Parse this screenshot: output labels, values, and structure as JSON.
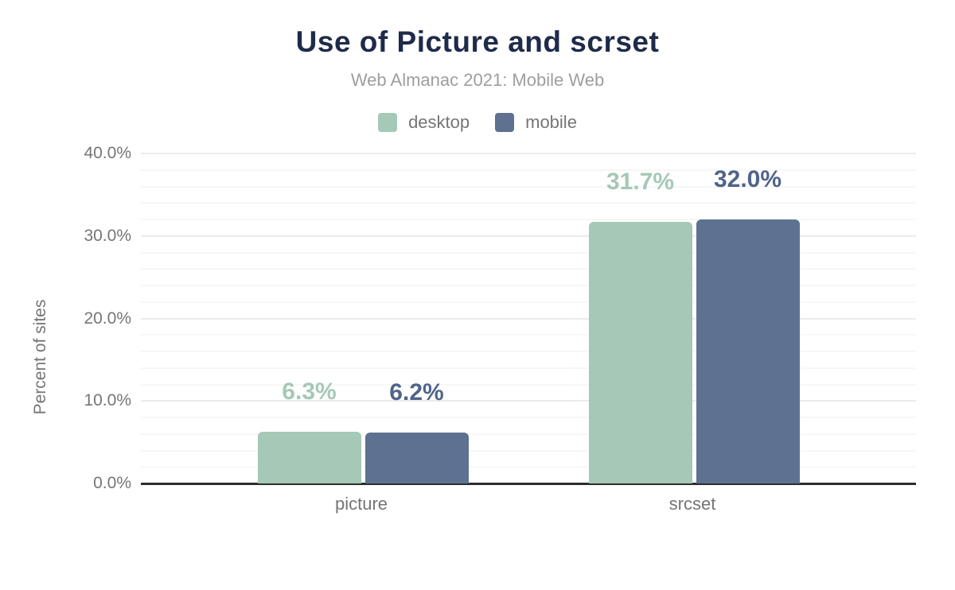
{
  "chart_data": {
    "type": "bar",
    "title": "Use of Picture and scrset",
    "subtitle": "Web Almanac 2021: Mobile Web",
    "ylabel": "Percent of sites",
    "categories": [
      "picture",
      "srcset"
    ],
    "series": [
      {
        "name": "desktop",
        "color": "#a5c8b7",
        "label_color": "#a5c8b7",
        "values": [
          6.3,
          31.7
        ],
        "data_labels": [
          "6.3%",
          "31.7%"
        ]
      },
      {
        "name": "mobile",
        "color": "#5e7190",
        "label_color": "#50648a",
        "values": [
          6.2,
          32.0
        ],
        "data_labels": [
          "6.2%",
          "32.0%"
        ]
      }
    ],
    "y_axis": {
      "min": 0,
      "max": 40,
      "major_step": 10,
      "minor_step": 2,
      "ticks": [
        {
          "value": 0,
          "label": "0.0%"
        },
        {
          "value": 10,
          "label": "10.0%"
        },
        {
          "value": 20,
          "label": "20.0%"
        },
        {
          "value": 30,
          "label": "30.0%"
        },
        {
          "value": 40,
          "label": "40.0%"
        }
      ]
    },
    "legend_position": "top",
    "grid": true
  },
  "colors": {
    "background": "#ffffff",
    "title_text": "#1e2b49",
    "subtitle_text": "#9e9e9e",
    "axis_text": "#757575",
    "axis_line": "#2d2d2d",
    "grid_minor": "#f7f7f7",
    "grid_major": "#ebebeb"
  }
}
